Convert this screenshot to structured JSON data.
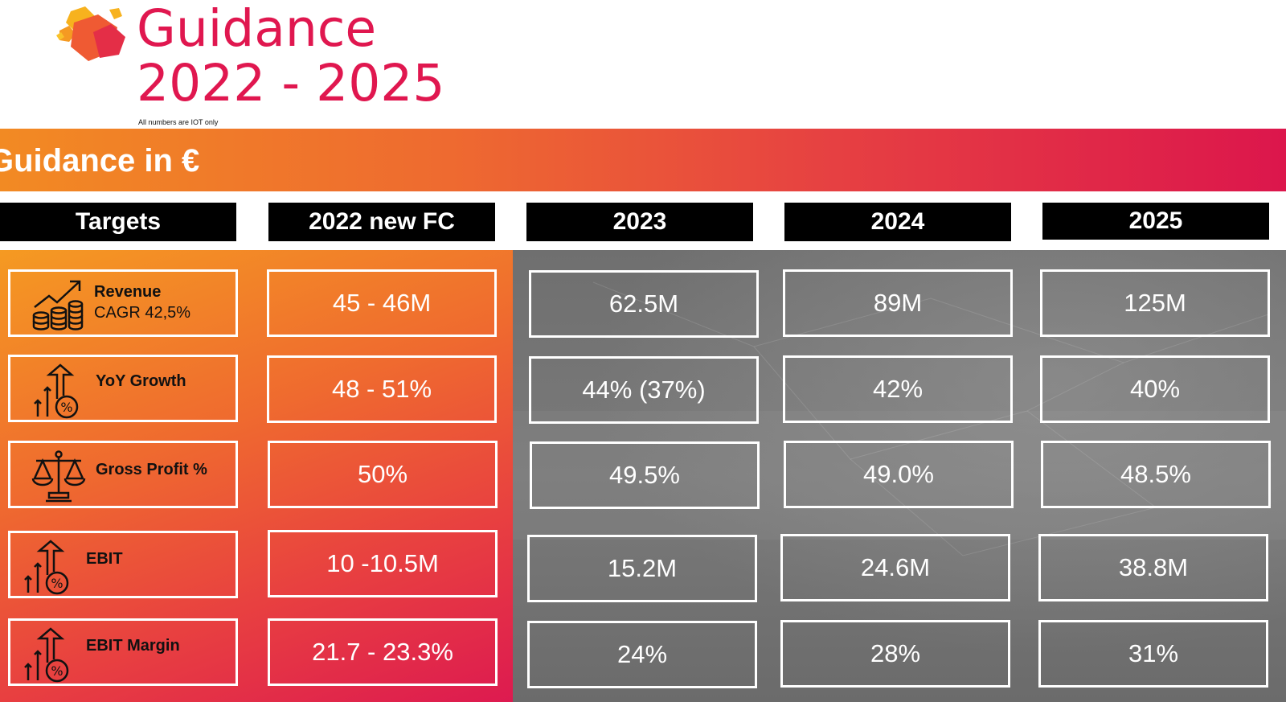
{
  "header": {
    "title_line1": "Guidance",
    "title_line2": "2022 - 2025",
    "note": "All numbers are IOT only",
    "banner": "Guidance in €"
  },
  "columns": [
    "Targets",
    "2022 new FC",
    "2023",
    "2024",
    "2025"
  ],
  "rows": [
    {
      "label": "Revenue",
      "sub": "CAGR 42,5%",
      "icon": "revenue-growth-icon",
      "values": [
        "45 - 46M",
        "62.5M",
        "89M",
        "125M"
      ]
    },
    {
      "label": "YoY Growth",
      "sub": "",
      "icon": "percent-growth-icon",
      "values": [
        "48 - 51%",
        "44% (37%)",
        "42%",
        "40%"
      ]
    },
    {
      "label": "Gross Profit %",
      "sub": "",
      "icon": "balance-scale-icon",
      "values": [
        "50%",
        "49.5%",
        "49.0%",
        "48.5%"
      ]
    },
    {
      "label": "EBIT",
      "sub": "",
      "icon": "percent-growth-icon",
      "values": [
        "10 -10.5M",
        "15.2M",
        "24.6M",
        "38.8M"
      ]
    },
    {
      "label": "EBIT Margin",
      "sub": "",
      "icon": "percent-growth-icon",
      "values": [
        "21.7 - 23.3%",
        "24%",
        "28%",
        "31%"
      ]
    }
  ],
  "colors": {
    "accent": "#e0174f",
    "orange": "#f28a23",
    "grey_panel": "#747474"
  }
}
